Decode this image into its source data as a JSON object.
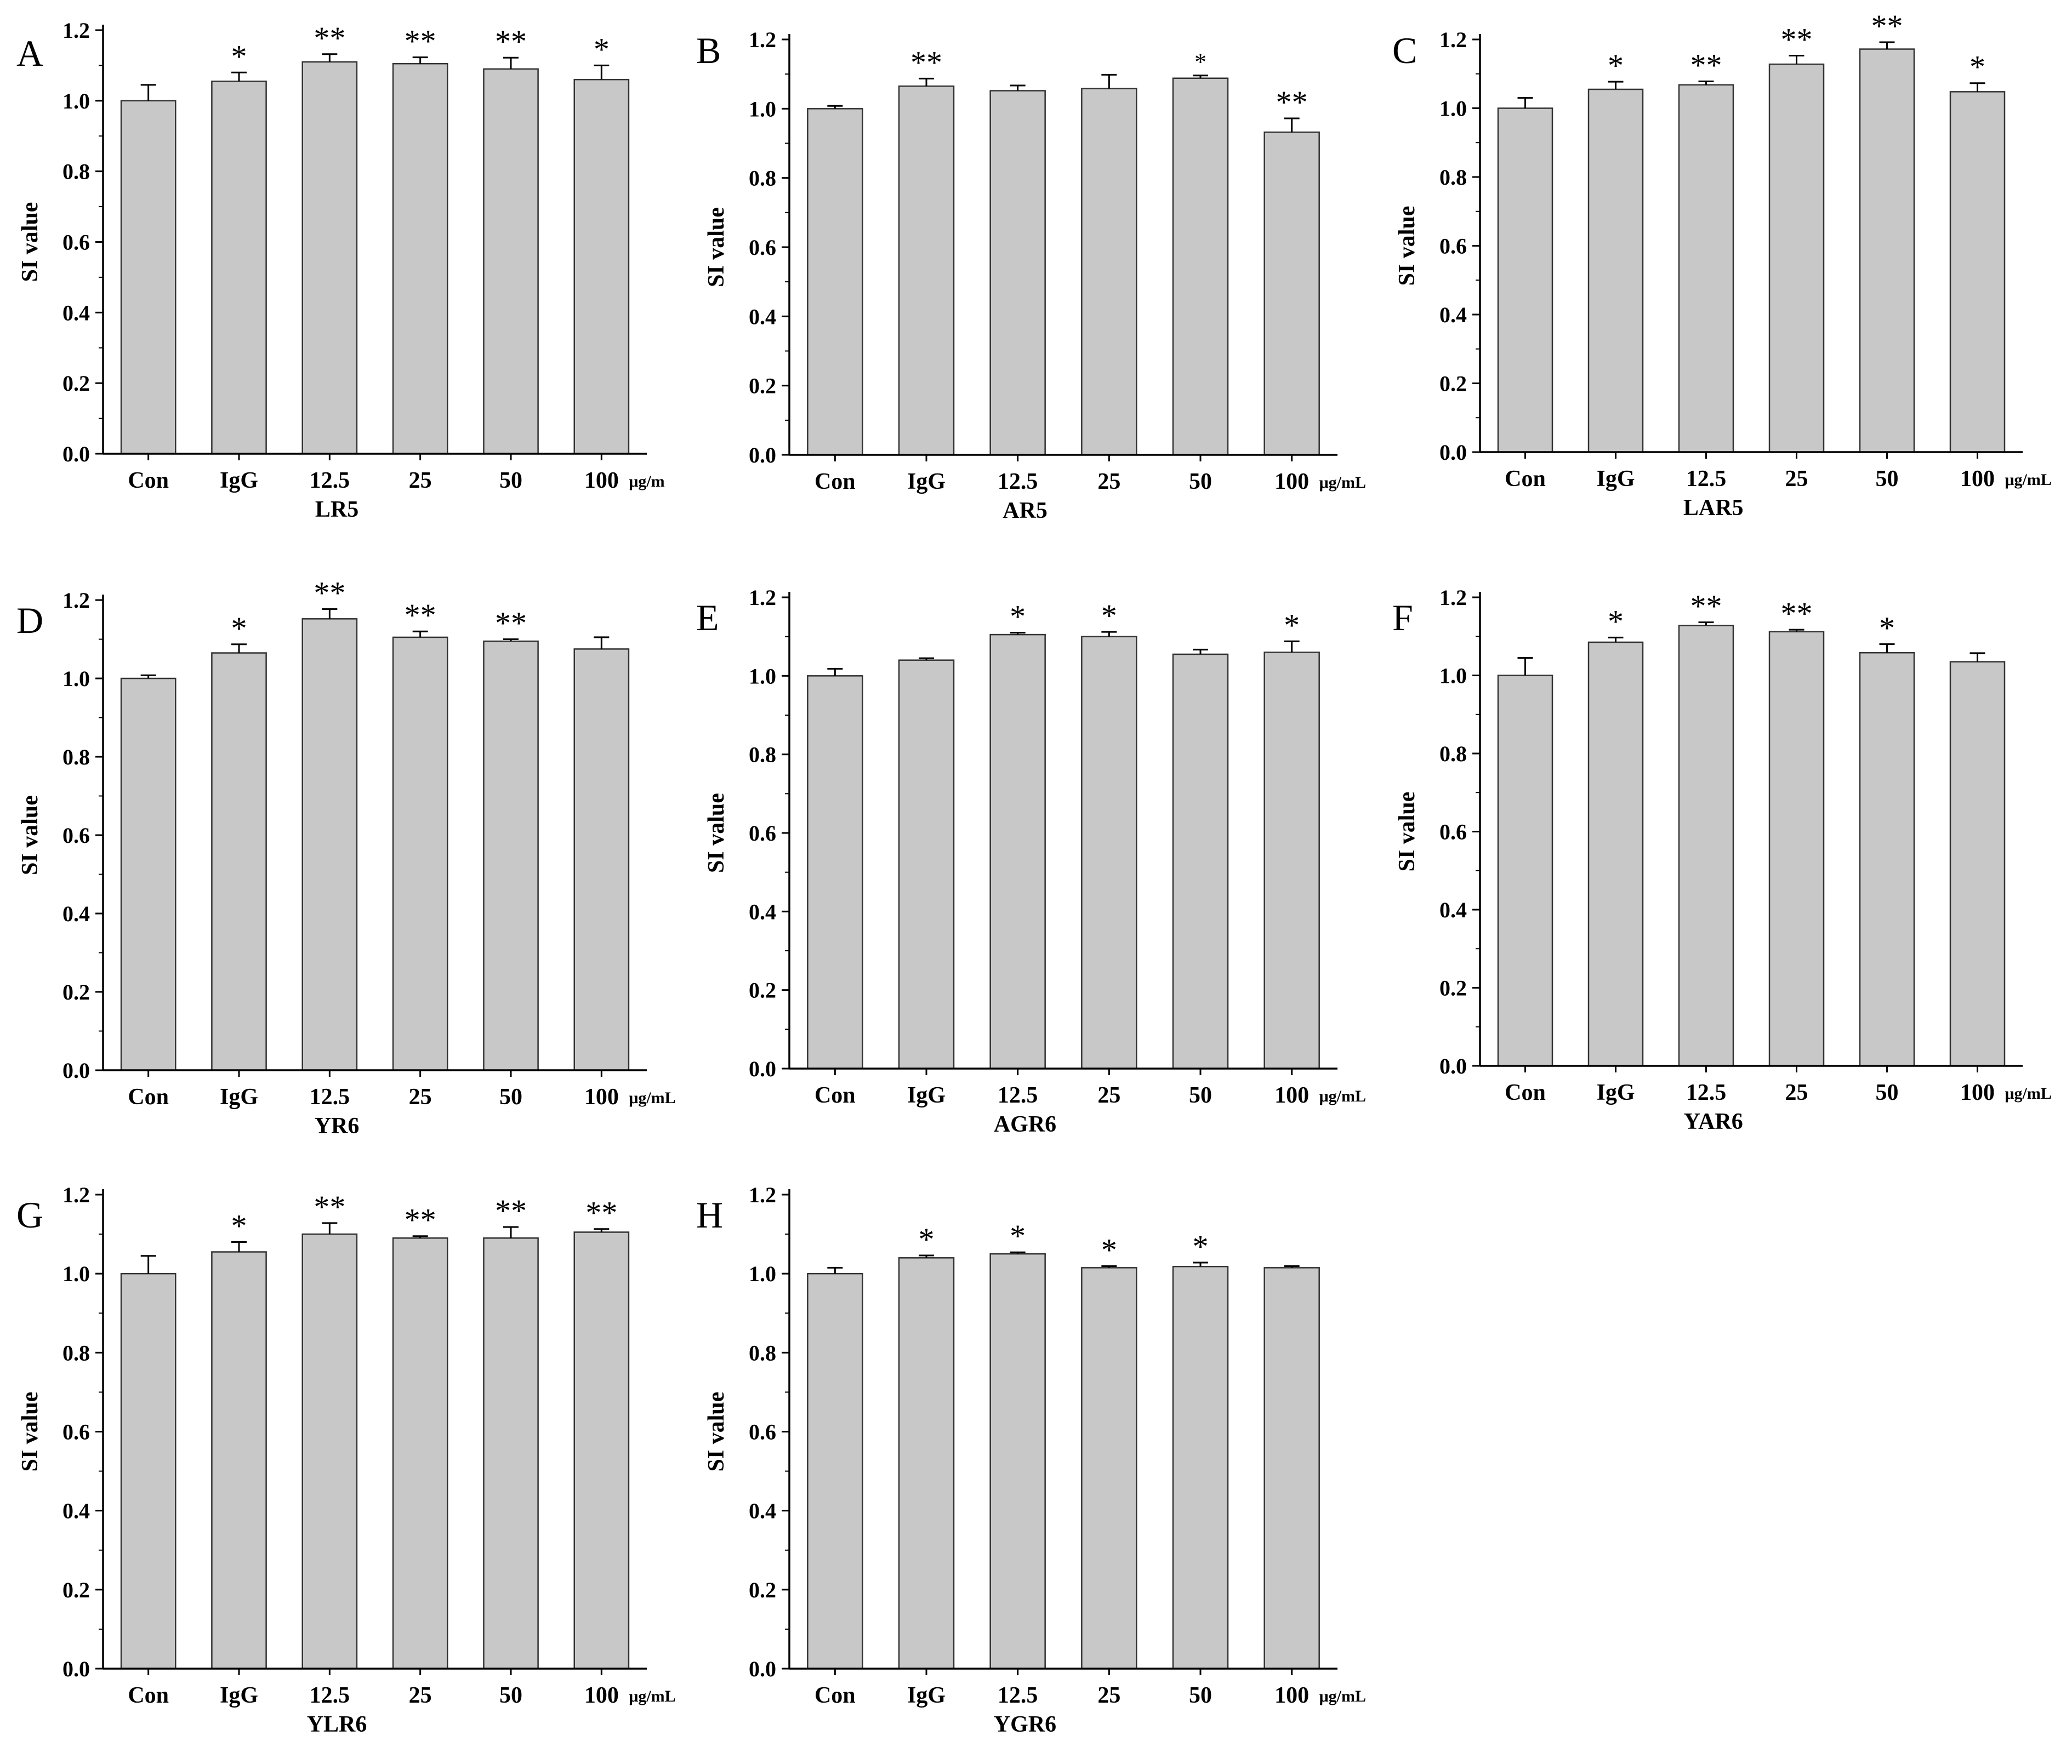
{
  "figure": {
    "bar_color": "#c8c8c8",
    "axis_color": "#000000"
  },
  "chart_data": [
    {
      "type": "bar",
      "panel": "A",
      "title": "",
      "xlabel": "LR5",
      "ylabel": "SI value",
      "unit": "μg/m",
      "categories": [
        "Con",
        "IgG",
        "12.5",
        "25",
        "50",
        "100"
      ],
      "values": [
        1.0,
        1.055,
        1.11,
        1.105,
        1.09,
        1.06
      ],
      "errors": [
        0.045,
        0.025,
        0.022,
        0.018,
        0.032,
        0.04
      ],
      "significance": [
        "",
        "*",
        "**",
        "**",
        "**",
        "*"
      ],
      "ylim": [
        0,
        1.2
      ],
      "yticks": [
        "0.0",
        "0.2",
        "0.4",
        "0.6",
        "0.8",
        "1.0",
        "1.2"
      ]
    },
    {
      "type": "bar",
      "panel": "B",
      "title": "",
      "xlabel": "AR5",
      "ylabel": "SI value",
      "unit": "μg/mL",
      "categories": [
        "Con",
        "IgG",
        "12.5",
        "25",
        "50",
        "100"
      ],
      "values": [
        1.0,
        1.065,
        1.052,
        1.058,
        1.088,
        0.932
      ],
      "errors": [
        0.008,
        0.022,
        0.015,
        0.04,
        0.008,
        0.04
      ],
      "significance": [
        "",
        "**",
        "",
        "",
        "*",
        "**"
      ],
      "ylim": [
        0,
        1.2
      ],
      "yticks": [
        "0.0",
        "0.2",
        "0.4",
        "0.6",
        "0.8",
        "1.0",
        "1.2"
      ]
    },
    {
      "type": "bar",
      "panel": "C",
      "title": "",
      "xlabel": "LAR5",
      "ylabel": "SI value",
      "unit": "μg/mL",
      "categories": [
        "Con",
        "IgG",
        "12.5",
        "25",
        "50",
        "100"
      ],
      "values": [
        1.0,
        1.055,
        1.068,
        1.128,
        1.172,
        1.048
      ],
      "errors": [
        0.03,
        0.022,
        0.01,
        0.025,
        0.02,
        0.025
      ],
      "significance": [
        "",
        "*",
        "**",
        "**",
        "**",
        "*"
      ],
      "ylim": [
        0,
        1.2
      ],
      "yticks": [
        "0.0",
        "0.2",
        "0.4",
        "0.6",
        "0.8",
        "1.0",
        "1.2"
      ]
    },
    {
      "type": "bar",
      "panel": "D",
      "title": "",
      "xlabel": "YR6",
      "ylabel": "SI value",
      "unit": "μg/mL",
      "categories": [
        "Con",
        "IgG",
        "12.5",
        "25",
        "50",
        "100"
      ],
      "values": [
        1.0,
        1.065,
        1.152,
        1.105,
        1.095,
        1.075
      ],
      "errors": [
        0.008,
        0.022,
        0.025,
        0.015,
        0.005,
        0.03
      ],
      "significance": [
        "",
        "*",
        "**",
        "**",
        "**",
        ""
      ],
      "ylim": [
        0,
        1.2
      ],
      "yticks": [
        "0.0",
        "0.2",
        "0.4",
        "0.6",
        "0.8",
        "1.0",
        "1.2"
      ]
    },
    {
      "type": "bar",
      "panel": "E",
      "title": "",
      "xlabel": "AGR6",
      "ylabel": "SI value",
      "unit": "μg/mL",
      "categories": [
        "Con",
        "IgG",
        "12.5",
        "25",
        "50",
        "100"
      ],
      "values": [
        1.0,
        1.04,
        1.105,
        1.1,
        1.055,
        1.06
      ],
      "errors": [
        0.018,
        0.005,
        0.005,
        0.012,
        0.012,
        0.028
      ],
      "significance": [
        "",
        "",
        "*",
        "*",
        "",
        "*"
      ],
      "ylim": [
        0,
        1.2
      ],
      "yticks": [
        "0.0",
        "0.2",
        "0.4",
        "0.6",
        "0.8",
        "1.0",
        "1.2"
      ]
    },
    {
      "type": "bar",
      "panel": "F",
      "title": "",
      "xlabel": "YAR6",
      "ylabel": "SI value",
      "unit": "μg/mL",
      "categories": [
        "Con",
        "IgG",
        "12.5",
        "25",
        "50",
        "100"
      ],
      "values": [
        1.0,
        1.085,
        1.128,
        1.112,
        1.058,
        1.035
      ],
      "errors": [
        0.045,
        0.012,
        0.008,
        0.005,
        0.022,
        0.022
      ],
      "significance": [
        "",
        "*",
        "**",
        "**",
        "*",
        ""
      ],
      "ylim": [
        0,
        1.2
      ],
      "yticks": [
        "0.0",
        "0.2",
        "0.4",
        "0.6",
        "0.8",
        "1.0",
        "1.2"
      ]
    },
    {
      "type": "bar",
      "panel": "G",
      "title": "",
      "xlabel": "YLR6",
      "ylabel": "SI value",
      "unit": "μg/mL",
      "categories": [
        "Con",
        "IgG",
        "12.5",
        "25",
        "50",
        "100"
      ],
      "values": [
        1.0,
        1.055,
        1.1,
        1.09,
        1.09,
        1.105
      ],
      "errors": [
        0.045,
        0.025,
        0.028,
        0.005,
        0.028,
        0.008
      ],
      "significance": [
        "",
        "*",
        "**",
        "**",
        "**",
        "**"
      ],
      "ylim": [
        0,
        1.2
      ],
      "yticks": [
        "0.0",
        "0.2",
        "0.4",
        "0.6",
        "0.8",
        "1.0",
        "1.2"
      ]
    },
    {
      "type": "bar",
      "panel": "H",
      "title": "",
      "xlabel": "YGR6",
      "ylabel": "SI value",
      "unit": "μg/mL",
      "categories": [
        "Con",
        "IgG",
        "12.5",
        "25",
        "50",
        "100"
      ],
      "values": [
        1.0,
        1.04,
        1.05,
        1.015,
        1.018,
        1.015
      ],
      "errors": [
        0.015,
        0.006,
        0.004,
        0.004,
        0.01,
        0.004
      ],
      "significance": [
        "",
        "*",
        "*",
        "*",
        "*",
        ""
      ],
      "ylim": [
        0,
        1.2
      ],
      "yticks": [
        "0.0",
        "0.2",
        "0.4",
        "0.6",
        "0.8",
        "1.0",
        "1.2"
      ]
    }
  ]
}
